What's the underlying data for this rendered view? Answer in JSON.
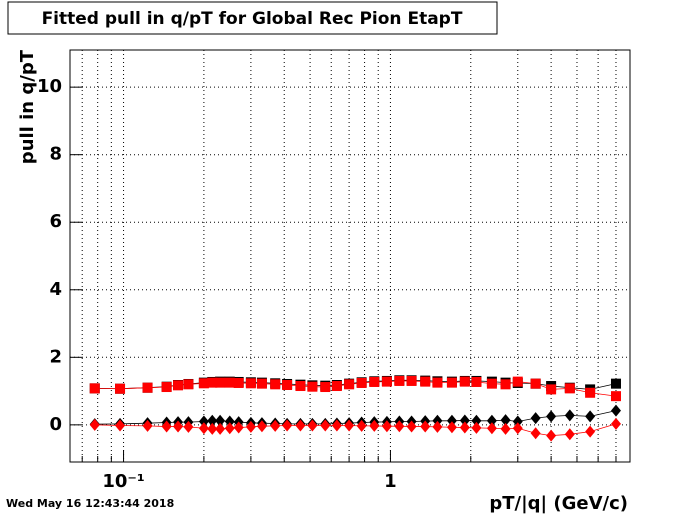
{
  "chart_data": {
    "type": "scatter",
    "title": "Fitted pull in q/pT for Global Rec Pion EtapT",
    "x_label": "pT/|q| (GeV/c)",
    "y_label": "pull in q/pT",
    "timestamp": "Wed May 16 12:43:44 2018",
    "x_scale": "log",
    "grid": true,
    "xlim": [
      0.063,
      7.9
    ],
    "ylim": [
      -1.1,
      11.1
    ],
    "xticks": [
      {
        "value": 0.1,
        "label": "10⁻¹"
      },
      1
    ],
    "xminorticks": [
      0.07,
      0.08,
      0.09,
      0.2,
      0.3,
      0.4,
      0.5,
      0.6,
      0.7,
      0.8,
      0.9,
      2,
      3,
      4,
      5,
      6,
      7
    ],
    "yticks": [
      0,
      2,
      4,
      6,
      8,
      10
    ],
    "x": [
      0.078,
      0.097,
      0.123,
      0.145,
      0.16,
      0.175,
      0.2,
      0.215,
      0.23,
      0.25,
      0.27,
      0.3,
      0.33,
      0.37,
      0.41,
      0.46,
      0.51,
      0.57,
      0.63,
      0.7,
      0.78,
      0.87,
      0.97,
      1.08,
      1.2,
      1.35,
      1.5,
      1.7,
      1.9,
      2.1,
      2.4,
      2.7,
      3.0,
      3.5,
      4.0,
      4.7,
      5.6,
      7.0
    ],
    "series": [
      {
        "color": "#000000",
        "marker": "square",
        "values": [
          1.08,
          1.07,
          1.1,
          1.13,
          1.18,
          1.21,
          1.25,
          1.27,
          1.28,
          1.28,
          1.27,
          1.26,
          1.25,
          1.23,
          1.21,
          1.19,
          1.17,
          1.16,
          1.18,
          1.22,
          1.26,
          1.29,
          1.3,
          1.32,
          1.32,
          1.31,
          1.29,
          1.28,
          1.3,
          1.3,
          1.28,
          1.25,
          1.24,
          1.22,
          1.15,
          1.1,
          1.05,
          1.22
        ]
      },
      {
        "color": "#000000",
        "marker": "diamond",
        "values": [
          0.02,
          0.03,
          0.05,
          0.07,
          0.08,
          0.08,
          0.1,
          0.12,
          0.12,
          0.1,
          0.08,
          0.06,
          0.05,
          0.04,
          0.03,
          0.03,
          0.03,
          0.03,
          0.04,
          0.05,
          0.07,
          0.08,
          0.09,
          0.1,
          0.1,
          0.11,
          0.12,
          0.12,
          0.13,
          0.12,
          0.12,
          0.14,
          0.1,
          0.2,
          0.25,
          0.28,
          0.25,
          0.42
        ]
      },
      {
        "color": "#ff0000",
        "marker": "square",
        "values": [
          1.08,
          1.07,
          1.1,
          1.12,
          1.17,
          1.2,
          1.23,
          1.25,
          1.25,
          1.25,
          1.24,
          1.23,
          1.22,
          1.2,
          1.18,
          1.15,
          1.13,
          1.12,
          1.15,
          1.2,
          1.24,
          1.27,
          1.28,
          1.3,
          1.3,
          1.28,
          1.25,
          1.25,
          1.28,
          1.27,
          1.22,
          1.2,
          1.28,
          1.22,
          1.05,
          1.08,
          0.95,
          0.85
        ]
      },
      {
        "color": "#ff0000",
        "marker": "diamond",
        "values": [
          0.0,
          -0.02,
          -0.03,
          -0.05,
          -0.05,
          -0.06,
          -0.1,
          -0.12,
          -0.12,
          -0.1,
          -0.08,
          -0.06,
          -0.04,
          -0.03,
          -0.02,
          -0.02,
          -0.02,
          -0.02,
          -0.02,
          -0.02,
          -0.03,
          -0.03,
          -0.04,
          -0.04,
          -0.05,
          -0.05,
          -0.06,
          -0.07,
          -0.08,
          -0.09,
          -0.1,
          -0.12,
          -0.1,
          -0.25,
          -0.32,
          -0.28,
          -0.2,
          0.03
        ]
      }
    ]
  }
}
